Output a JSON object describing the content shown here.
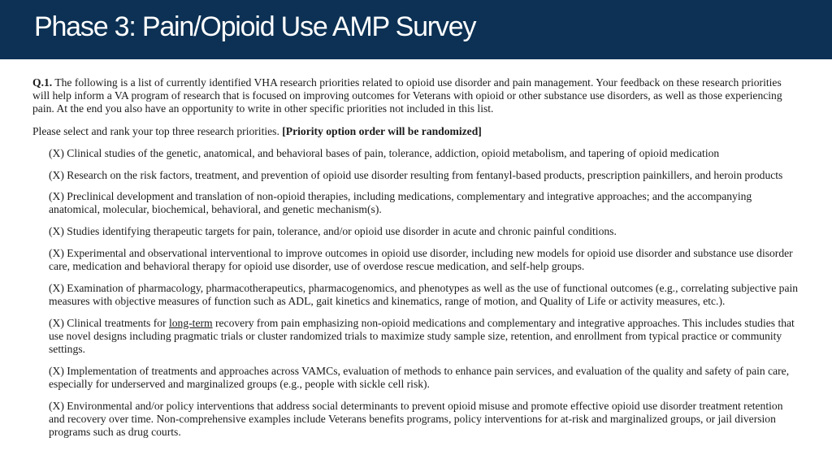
{
  "header": {
    "title": "Phase 3: Pain/Opioid Use AMP Survey"
  },
  "question": {
    "number": "Q.1.",
    "text": " The following is a list of currently identified VHA research priorities related to opioid use disorder and pain management. Your feedback on these research priorities will help inform a VA program of research that is focused on improving outcomes for Veterans with opioid or other substance use disorders, as well as those experiencing pain. At the end you also have an opportunity to write in other specific priorities not included in this list."
  },
  "prompt": {
    "text": "Please select and rank your top three research priorities. ",
    "note": "[Priority option order will be randomized]"
  },
  "options": [
    "(X) Clinical studies of the genetic, anatomical, and behavioral bases of pain, tolerance, addiction, opioid metabolism, and tapering of opioid medication",
    "(X) Research on the risk factors, treatment, and prevention of opioid use disorder  resulting from fentanyl-based products, prescription painkillers, and heroin products",
    "(X) Preclinical development and translation of non-opioid therapies, including medications, complementary and integrative approaches; and the accompanying anatomical, molecular, biochemical, behavioral, and genetic mechanism(s).",
    "(X) Studies identifying therapeutic targets for pain, tolerance, and/or opioid use disorder in acute and chronic painful conditions.",
    "(X)  Experimental and observational interventional to improve outcomes in opioid use disorder, including new models for opioid use disorder and substance use disorder care, medication and behavioral therapy for opioid use disorder, use of overdose rescue medication, and self-help groups.",
    "(X) Examination of pharmacology, pharmacotherapeutics, pharmacogenomics, and phenotypes as well as the use of functional outcomes (e.g., correlating subjective pain measures with objective measures of function such as ADL, gait kinetics and kinematics, range of motion, and Quality of Life or activity measures, etc.)."
  ],
  "option_longterm": {
    "before": "(X) Clinical treatments for ",
    "underlined": "long-term",
    "after": " recovery from pain emphasizing non-opioid medications and complementary and integrative approaches. This includes studies that use novel designs including pragmatic trials or cluster randomized trials to maximize study sample size, retention, and enrollment from typical practice or community settings."
  },
  "options_tail": [
    "(X)  Implementation of treatments and approaches across VAMCs, evaluation of methods to enhance pain services, and evaluation of the quality and safety of pain care, especially for underserved and marginalized groups (e.g., people with sickle cell risk).",
    "(X)  Environmental and/or policy interventions that address social determinants to prevent opioid misuse and promote effective opioid use disorder treatment retention and recovery over time. Non-comprehensive examples include Veterans benefits programs, policy interventions for at-risk and marginalized groups, or jail diversion programs such as drug courts."
  ],
  "colors": {
    "header_bg": "#0c3154",
    "header_text": "#ffffff"
  }
}
